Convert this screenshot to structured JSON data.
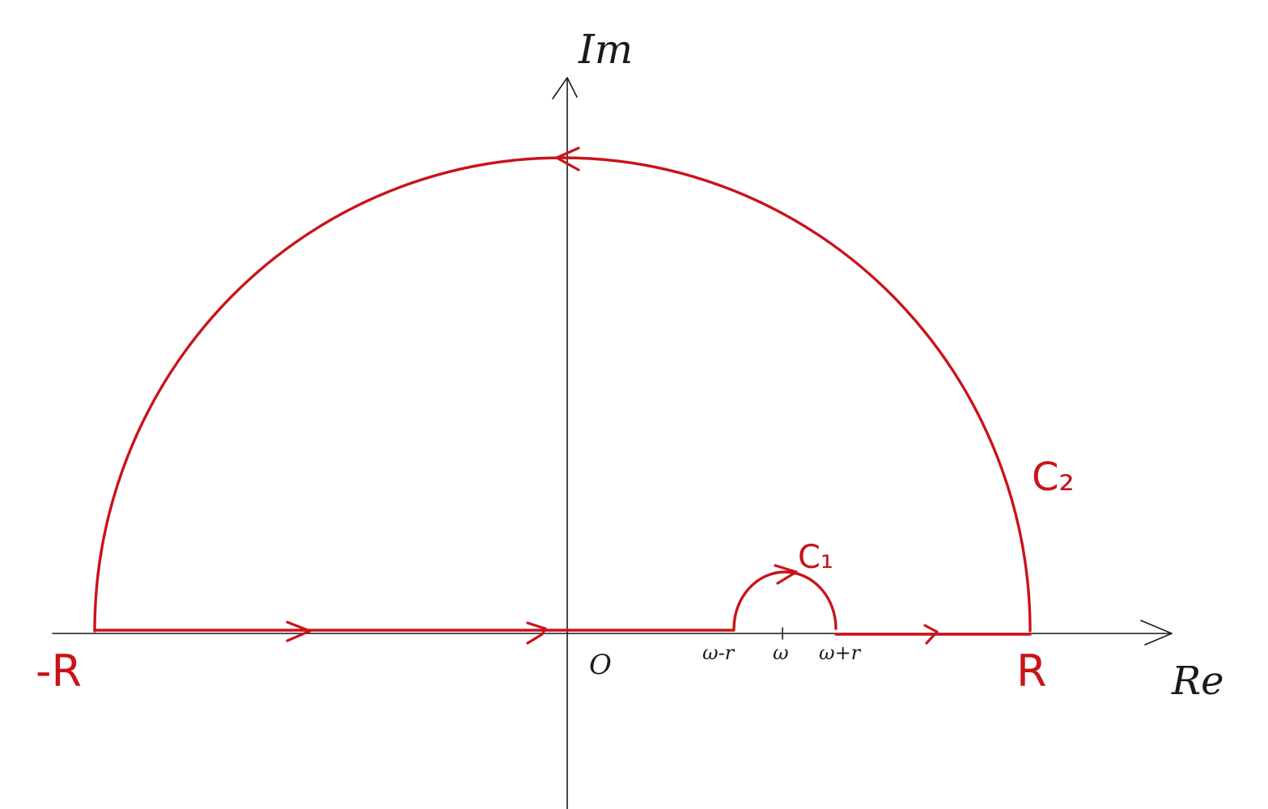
{
  "axes": {
    "x_label": "Re",
    "y_label": "Im"
  },
  "ticks": {
    "origin": "O",
    "omega_minus_r": "ω-r",
    "omega": "ω",
    "omega_plus_r": "ω+r"
  },
  "contour": {
    "left_end": "-R",
    "right_end": "R",
    "small_arc": "C₁",
    "large_arc": "C₂"
  },
  "colors": {
    "axis": "#1a1a1a",
    "contour": "#c8141a",
    "background": "#ffffff"
  }
}
